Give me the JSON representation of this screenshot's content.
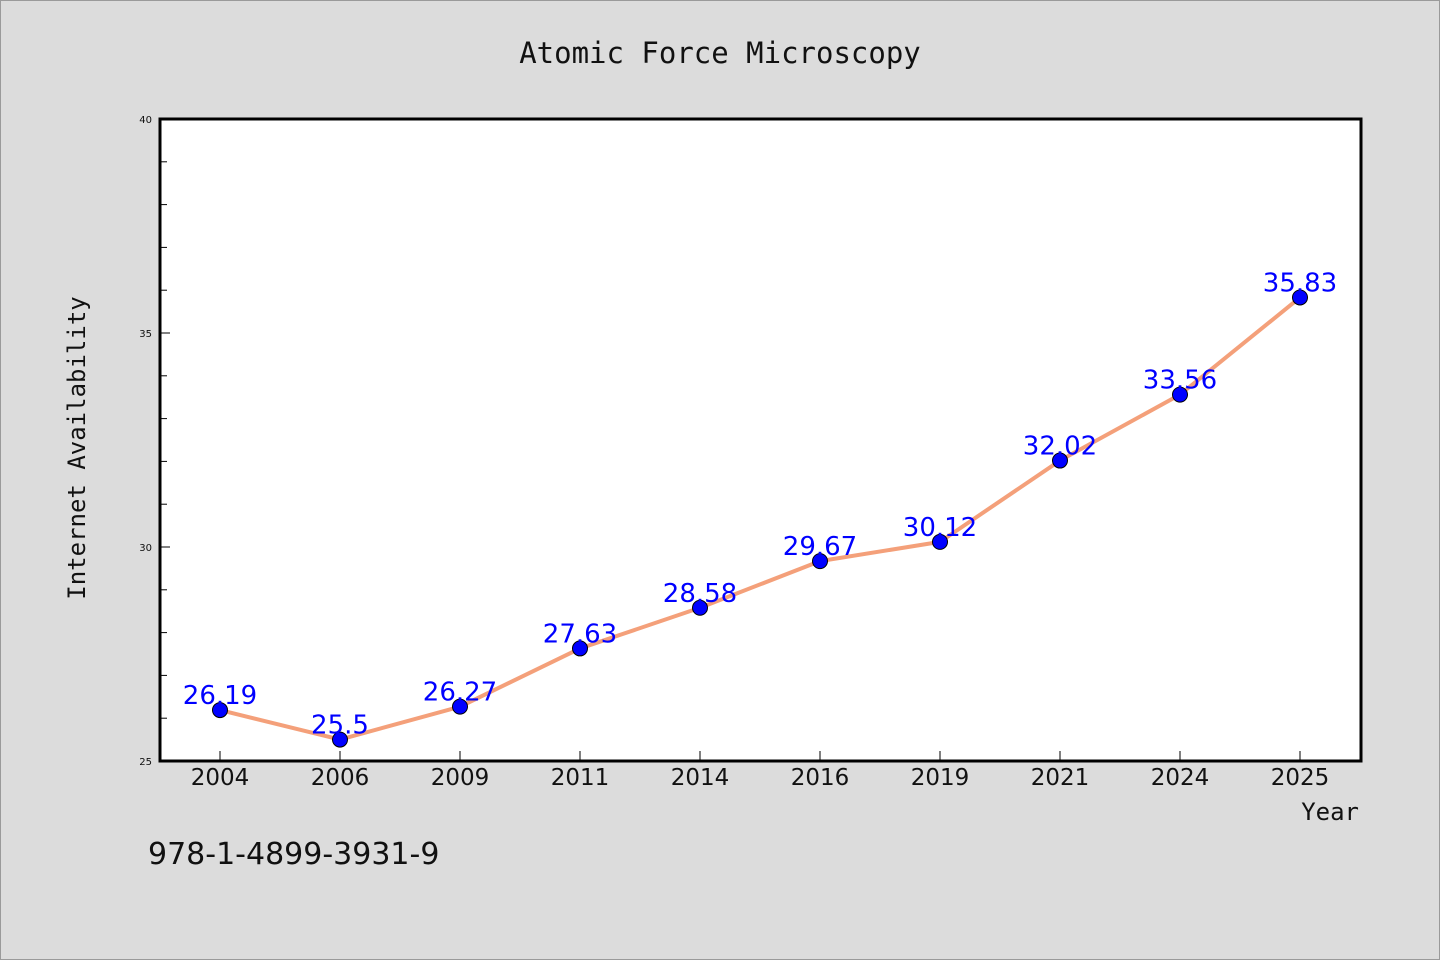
{
  "chart_data": {
    "type": "line",
    "title": "Atomic Force Microscopy",
    "xlabel": "Year",
    "ylabel": "Internet Availability",
    "categories": [
      "2004",
      "2006",
      "2009",
      "2011",
      "2014",
      "2016",
      "2019",
      "2021",
      "2024",
      "2025"
    ],
    "series": [
      {
        "values": [
          26.19,
          25.5,
          26.27,
          27.63,
          28.58,
          29.67,
          30.12,
          32.02,
          33.56,
          35.83
        ],
        "line_color": "#f4a07a",
        "marker_color": "#0000ff"
      }
    ],
    "data_labels": [
      "26.19",
      "25.5",
      "26.27",
      "27.63",
      "28.58",
      "29.67",
      "30.12",
      "32.02",
      "33.56",
      "35.83"
    ],
    "ylim": [
      25,
      40
    ],
    "yticks": [
      25,
      30,
      35,
      40
    ],
    "grid": false,
    "label_color": "#0000ff",
    "background": "#dcdcdc",
    "plot_background": "#ffffff"
  },
  "footer": {
    "isbn": "978-1-4899-3931-9"
  }
}
